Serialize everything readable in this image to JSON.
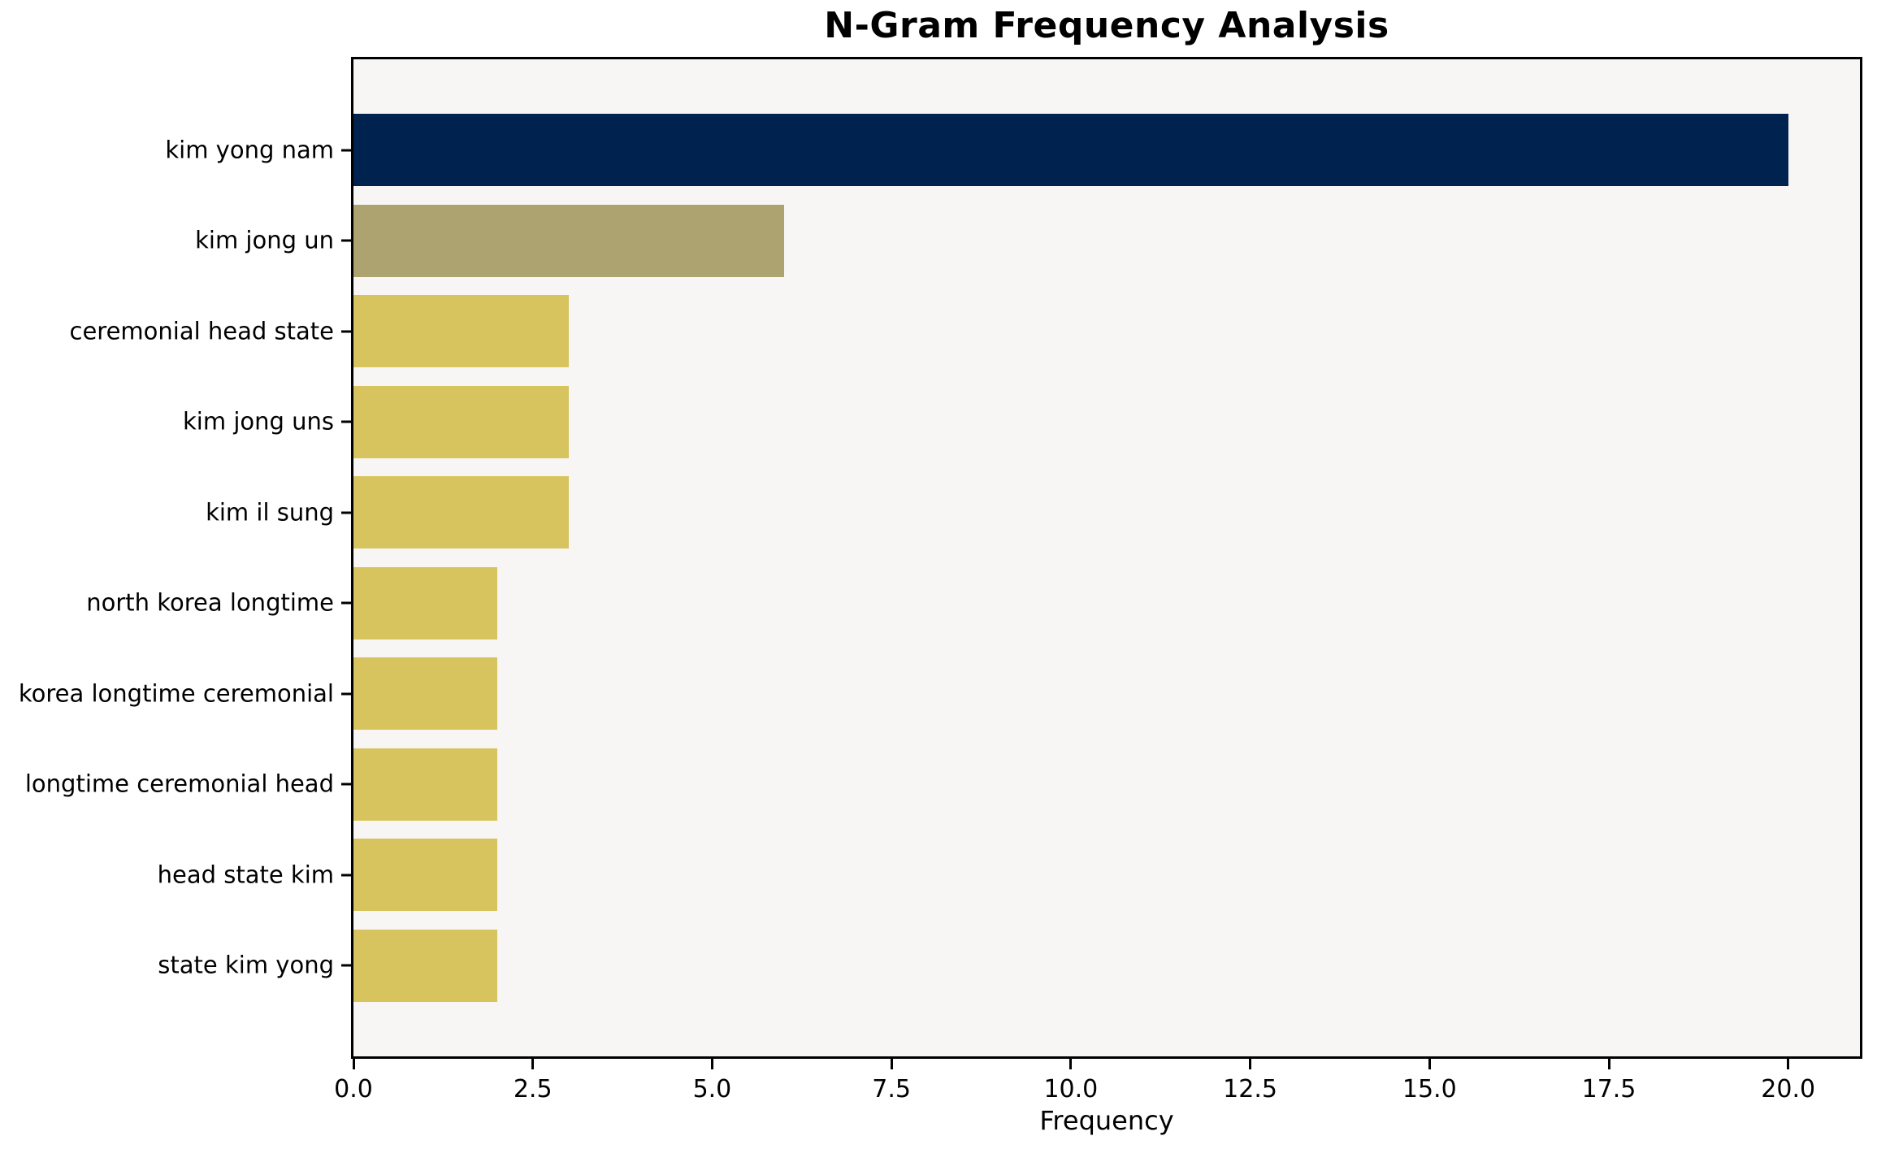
{
  "chart_data": {
    "type": "bar",
    "orientation": "horizontal",
    "title": "N-Gram Frequency Analysis",
    "categories": [
      "kim yong nam",
      "kim jong un",
      "ceremonial head state",
      "kim jong uns",
      "kim il sung",
      "north korea longtime",
      "korea longtime ceremonial",
      "longtime ceremonial head",
      "head state kim",
      "state kim yong"
    ],
    "values": [
      20,
      6,
      3,
      3,
      3,
      2,
      2,
      2,
      2,
      2
    ],
    "bar_colors": [
      "#00224E",
      "#ADA370",
      "#D7C45E",
      "#D7C45E",
      "#D7C45E",
      "#D7C45E",
      "#D7C45E",
      "#D7C45E",
      "#D7C45E",
      "#D7C45E"
    ],
    "xlabel": "Frequency",
    "ylabel": "",
    "x_ticks": [
      0,
      2.5,
      5,
      7.5,
      10,
      12.5,
      15,
      17.5,
      20
    ],
    "x_tick_labels": [
      "0.0",
      "2.5",
      "5.0",
      "7.5",
      "10.0",
      "12.5",
      "15.0",
      "17.5",
      "20.0"
    ],
    "xlim": [
      0,
      21
    ],
    "grid": false,
    "legend": "none",
    "bar_height_fraction": 0.8,
    "plot_background": "#F7F6F5",
    "figure_background": "#FFFFFF",
    "spine_color": "#000000"
  }
}
